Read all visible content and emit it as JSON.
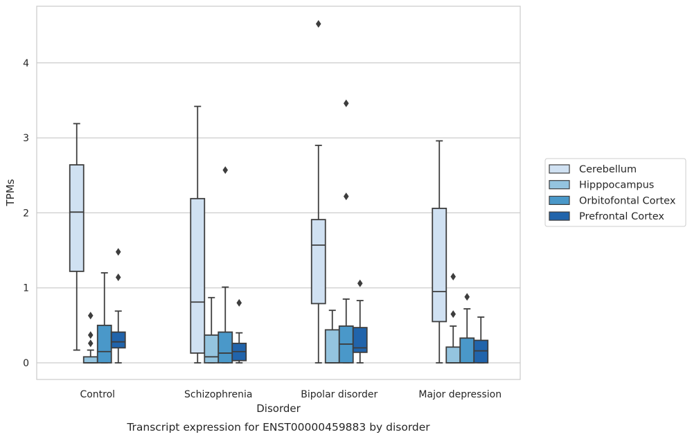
{
  "caption": "Transcript expression for ENST00000459883 by disorder",
  "chart_data": {
    "type": "box",
    "title": "",
    "xlabel": "Disorder",
    "ylabel": "TPMs",
    "ylim": [
      -0.22,
      4.83
    ],
    "yticks": [
      0,
      1,
      2,
      3,
      4
    ],
    "grid": "horizontal",
    "legend_placement": "right",
    "categories": [
      "Control",
      "Schizophrenia",
      "Bipolar disorder",
      "Major depression"
    ],
    "series": [
      {
        "name": "Cerebellum",
        "color": "#d0e1f2",
        "boxes": [
          {
            "whisker_low": 0.17,
            "q1": 1.22,
            "median": 2.01,
            "q3": 2.64,
            "whisker_high": 3.19,
            "outliers": []
          },
          {
            "whisker_low": 0.0,
            "q1": 0.13,
            "median": 0.81,
            "q3": 2.19,
            "whisker_high": 3.42,
            "outliers": []
          },
          {
            "whisker_low": 0.0,
            "q1": 0.79,
            "median": 1.57,
            "q3": 1.91,
            "whisker_high": 2.9,
            "outliers": [
              4.52
            ]
          },
          {
            "whisker_low": 0.0,
            "q1": 0.55,
            "median": 0.95,
            "q3": 2.06,
            "whisker_high": 2.96,
            "outliers": []
          }
        ]
      },
      {
        "name": "Hipppocampus",
        "color": "#94c4df",
        "boxes": [
          {
            "whisker_low": 0.0,
            "q1": 0.0,
            "median": 0.0,
            "q3": 0.08,
            "whisker_high": 0.17,
            "outliers": [
              0.26,
              0.37,
              0.63
            ]
          },
          {
            "whisker_low": 0.0,
            "q1": 0.0,
            "median": 0.08,
            "q3": 0.37,
            "whisker_high": 0.87,
            "outliers": []
          },
          {
            "whisker_low": 0.0,
            "q1": 0.0,
            "median": 0.0,
            "q3": 0.44,
            "whisker_high": 0.7,
            "outliers": []
          },
          {
            "whisker_low": 0.0,
            "q1": 0.0,
            "median": 0.0,
            "q3": 0.21,
            "whisker_high": 0.49,
            "outliers": [
              0.65,
              1.15
            ]
          }
        ]
      },
      {
        "name": "Orbitofontal Cortex",
        "color": "#4a98c9",
        "boxes": [
          {
            "whisker_low": 0.0,
            "q1": 0.0,
            "median": 0.15,
            "q3": 0.5,
            "whisker_high": 1.2,
            "outliers": []
          },
          {
            "whisker_low": 0.0,
            "q1": 0.0,
            "median": 0.13,
            "q3": 0.41,
            "whisker_high": 1.01,
            "outliers": [
              2.57
            ]
          },
          {
            "whisker_low": 0.0,
            "q1": 0.0,
            "median": 0.25,
            "q3": 0.49,
            "whisker_high": 0.85,
            "outliers": [
              2.22,
              3.46
            ]
          },
          {
            "whisker_low": 0.0,
            "q1": 0.0,
            "median": 0.0,
            "q3": 0.33,
            "whisker_high": 0.72,
            "outliers": [
              0.88
            ]
          }
        ]
      },
      {
        "name": "Prefrontal Cortex",
        "color": "#2164ab",
        "boxes": [
          {
            "whisker_low": 0.0,
            "q1": 0.2,
            "median": 0.28,
            "q3": 0.41,
            "whisker_high": 0.69,
            "outliers": [
              1.14,
              1.48
            ]
          },
          {
            "whisker_low": 0.0,
            "q1": 0.03,
            "median": 0.15,
            "q3": 0.26,
            "whisker_high": 0.4,
            "outliers": [
              0.8
            ]
          },
          {
            "whisker_low": 0.0,
            "q1": 0.14,
            "median": 0.2,
            "q3": 0.47,
            "whisker_high": 0.83,
            "outliers": [
              1.06
            ]
          },
          {
            "whisker_low": 0.0,
            "q1": 0.0,
            "median": 0.16,
            "q3": 0.3,
            "whisker_high": 0.61,
            "outliers": []
          }
        ]
      }
    ]
  }
}
